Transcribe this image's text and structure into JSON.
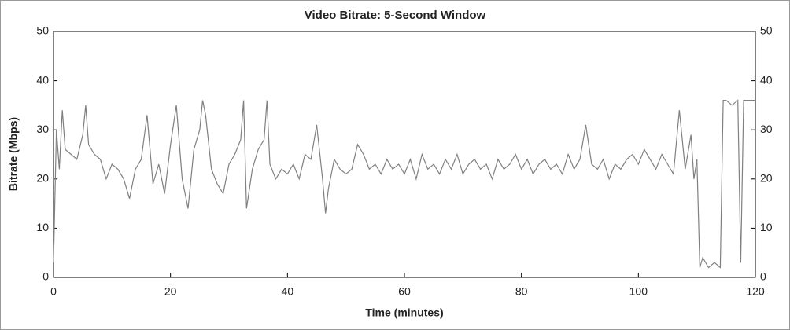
{
  "chart_data": {
    "type": "line",
    "title": "Video Bitrate: 5-Second Window",
    "x_label": "Time (minutes)",
    "y_label": "Bitrate (Mbps)",
    "xlim": [
      0,
      120
    ],
    "xticks": [
      0,
      20,
      40,
      60,
      80,
      100,
      120
    ],
    "ylim": [
      0,
      50
    ],
    "yticks": [
      0,
      10,
      20,
      30,
      40,
      50
    ],
    "series": [
      {
        "color": "#808080",
        "x": [
          0,
          0.5,
          1,
          1.5,
          2,
          3,
          4,
          5,
          5.5,
          6,
          7,
          8,
          9,
          10,
          11,
          12,
          13,
          14,
          15,
          16,
          17,
          18,
          19,
          20,
          21,
          22,
          23,
          24,
          25,
          25.5,
          26,
          27,
          28,
          29,
          30,
          31,
          32,
          32.5,
          33,
          34,
          35,
          36,
          36.5,
          37,
          38,
          39,
          40,
          41,
          42,
          43,
          44,
          45,
          46,
          46.5,
          47,
          48,
          49,
          50,
          51,
          52,
          53,
          54,
          55,
          56,
          57,
          58,
          59,
          60,
          61,
          62,
          63,
          64,
          65,
          66,
          67,
          68,
          69,
          70,
          71,
          72,
          73,
          74,
          75,
          76,
          77,
          78,
          79,
          80,
          81,
          82,
          83,
          84,
          85,
          86,
          87,
          88,
          89,
          90,
          91,
          92,
          93,
          94,
          95,
          96,
          97,
          98,
          99,
          100,
          101,
          102,
          103,
          104,
          105,
          106,
          107,
          108,
          109,
          109.5,
          110,
          110.5,
          111,
          112,
          113,
          114,
          114.5,
          115,
          116,
          117,
          117.5,
          118,
          119,
          120
        ],
        "values": [
          3,
          30,
          22,
          34,
          26,
          25,
          24,
          29,
          35,
          27,
          25,
          24,
          20,
          23,
          22,
          20,
          16,
          22,
          24,
          33,
          19,
          23,
          17,
          27,
          35,
          20,
          14,
          26,
          30,
          36,
          33,
          22,
          19,
          17,
          23,
          25,
          28,
          36,
          14,
          22,
          26,
          28,
          36,
          23,
          20,
          22,
          21,
          23,
          20,
          25,
          24,
          31,
          20,
          13,
          18,
          24,
          22,
          21,
          22,
          27,
          25,
          22,
          23,
          21,
          24,
          22,
          23,
          21,
          24,
          20,
          25,
          22,
          23,
          21,
          24,
          22,
          25,
          21,
          23,
          24,
          22,
          23,
          20,
          24,
          22,
          23,
          25,
          22,
          24,
          21,
          23,
          24,
          22,
          23,
          21,
          25,
          22,
          24,
          31,
          23,
          22,
          24,
          20,
          23,
          22,
          24,
          25,
          23,
          26,
          24,
          22,
          25,
          23,
          21,
          34,
          22,
          29,
          20,
          24,
          2,
          4,
          2,
          3,
          2,
          36,
          36,
          35,
          36,
          3,
          36,
          36,
          36
        ]
      }
    ]
  }
}
